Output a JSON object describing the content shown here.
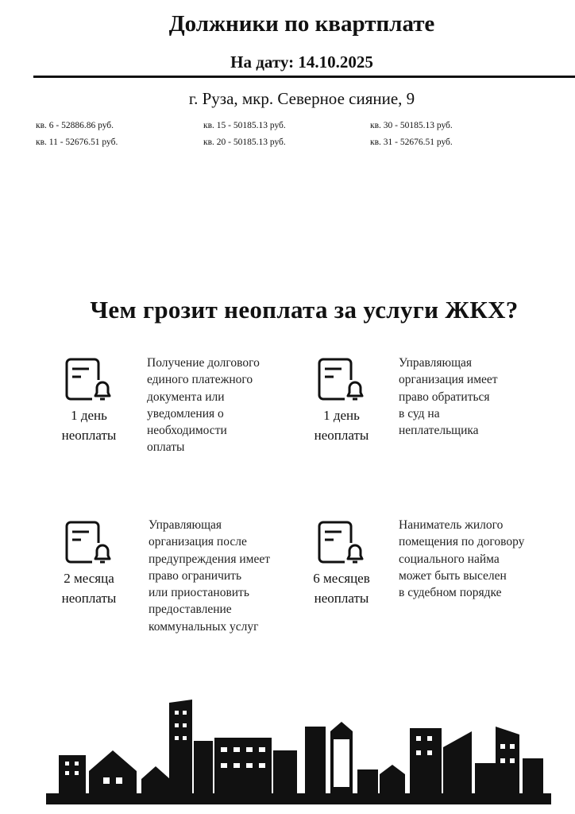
{
  "header": {
    "title": "Должники по квартплате",
    "date": "На дату: 14.10.2025",
    "address": "г. Руза, мкр. Северное сияние, 9"
  },
  "debtors": [
    "кв. 6 - 52886.86 руб.",
    "кв. 11 - 52676.51 руб.",
    "кв. 15 - 50185.13 руб.",
    "кв. 20 - 50185.13 руб.",
    "кв. 30 - 50185.13 руб.",
    "кв. 31 - 52676.51 руб."
  ],
  "info": {
    "heading": "Чем грозит неоплата за услуги ЖКХ?",
    "items": [
      {
        "icon": "document-bell-icon",
        "period": "1 день",
        "unit": "неоплаты",
        "text": [
          "Получение долгового",
          "единого платежного",
          "документа или",
          "уведомления о",
          "необходимости",
          "оплаты"
        ]
      },
      {
        "icon": "document-bell-icon",
        "period": "1 день",
        "unit": "неоплаты",
        "text": [
          "Управляющая",
          "организация имеет",
          "право обратиться",
          "в суд на",
          "неплательщика"
        ]
      },
      {
        "icon": "document-bell-icon",
        "period": "2 месяца",
        "unit": "неоплаты",
        "text": [
          "Управляющая",
          "организация после",
          "предупреждения имеет",
          "право ограничить",
          "или приостановить",
          "предоставление",
          "коммунальных услуг"
        ]
      },
      {
        "icon": "document-bell-icon",
        "period": "6 месяцев",
        "unit": "неоплаты",
        "text": [
          "Наниматель жилого",
          "помещения по договору",
          "социального найма",
          "может быть выселен",
          "в судебном порядке"
        ]
      }
    ]
  }
}
